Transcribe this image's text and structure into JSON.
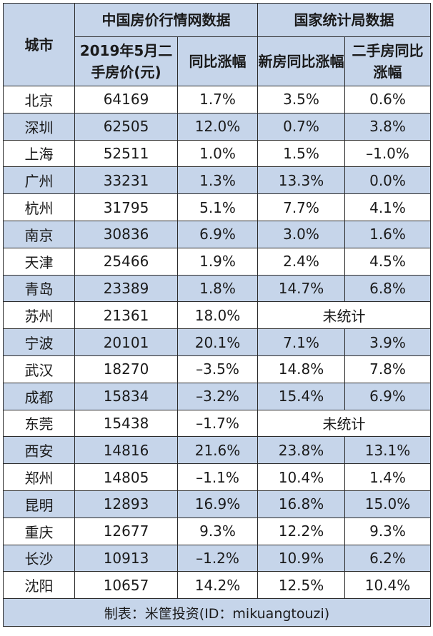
{
  "header": {
    "city": "城市",
    "group_a": "中国房价行情网数据",
    "group_b": "国家统计局数据",
    "col_price": "2019年5月二手房价(元)",
    "col_yoy": "同比涨幅",
    "col_new": "新房同比涨幅",
    "col_second": "二手房同比涨幅"
  },
  "rows": [
    {
      "city": "北京",
      "price": "64169",
      "yoy": "1.7%",
      "new": "3.5%",
      "second": "0.6%"
    },
    {
      "city": "深圳",
      "price": "62505",
      "yoy": "12.0%",
      "new": "0.7%",
      "second": "3.8%"
    },
    {
      "city": "上海",
      "price": "52511",
      "yoy": "1.0%",
      "new": "1.5%",
      "second": "–1.0%"
    },
    {
      "city": "广州",
      "price": "33231",
      "yoy": "1.3%",
      "new": "13.3%",
      "second": "0.0%"
    },
    {
      "city": "杭州",
      "price": "31795",
      "yoy": "5.1%",
      "new": "7.7%",
      "second": "4.1%"
    },
    {
      "city": "南京",
      "price": "30836",
      "yoy": "6.9%",
      "new": "3.0%",
      "second": "1.6%"
    },
    {
      "city": "天津",
      "price": "25466",
      "yoy": "1.9%",
      "new": "2.4%",
      "second": "4.5%"
    },
    {
      "city": "青岛",
      "price": "23389",
      "yoy": "1.8%",
      "new": "14.7%",
      "second": "6.8%"
    },
    {
      "city": "苏州",
      "price": "21361",
      "yoy": "18.0%",
      "merged": "未统计"
    },
    {
      "city": "宁波",
      "price": "20101",
      "yoy": "20.1%",
      "new": "7.1%",
      "second": "3.9%"
    },
    {
      "city": "武汉",
      "price": "18270",
      "yoy": "–3.5%",
      "new": "14.8%",
      "second": "7.8%"
    },
    {
      "city": "成都",
      "price": "15834",
      "yoy": "–3.2%",
      "new": "15.4%",
      "second": "6.9%"
    },
    {
      "city": "东莞",
      "price": "15438",
      "yoy": "–1.7%",
      "merged": "未统计"
    },
    {
      "city": "西安",
      "price": "14816",
      "yoy": "21.6%",
      "new": "23.8%",
      "second": "13.1%"
    },
    {
      "city": "郑州",
      "price": "14805",
      "yoy": "–1.1%",
      "new": "10.4%",
      "second": "1.4%"
    },
    {
      "city": "昆明",
      "price": "12893",
      "yoy": "16.9%",
      "new": "16.8%",
      "second": "15.0%"
    },
    {
      "city": "重庆",
      "price": "12677",
      "yoy": "9.3%",
      "new": "12.2%",
      "second": "9.3%"
    },
    {
      "city": "长沙",
      "price": "10913",
      "yoy": "–1.2%",
      "new": "10.9%",
      "second": "6.2%"
    },
    {
      "city": "沈阳",
      "price": "10657",
      "yoy": "14.2%",
      "new": "12.5%",
      "second": "10.4%"
    }
  ],
  "footer": "制表：米筐投资(ID：mikuangtouzi)",
  "colors": {
    "header_bg": "#c6d5ea",
    "stripe_bg": "#c6d5ea",
    "border": "#2b2b2b"
  }
}
